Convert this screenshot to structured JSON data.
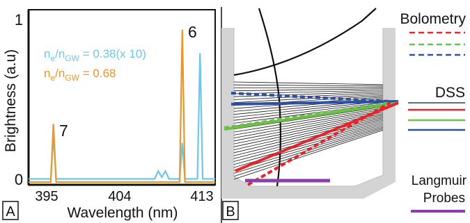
{
  "panel_a": {
    "label": "A",
    "ylabel": "Brightness (a.u)",
    "xlabel": "Wavelength (nm)",
    "xticks": [
      "395",
      "404",
      "413"
    ],
    "yticks": [
      "0",
      "1"
    ],
    "line_labels": [
      "7",
      "6"
    ],
    "legend": {
      "cyan_prefix": "n",
      "cyan_sub1": "e",
      "cyan_slash": "/n",
      "cyan_sub2": "GW",
      "cyan_value": " = 0.38(x 10)",
      "orange_prefix": "n",
      "orange_sub1": "e",
      "orange_slash": "/n",
      "orange_sub2": "GW",
      "orange_value": " = 0.68"
    },
    "colors": {
      "cyan": "#6ec6e8",
      "orange": "#e8952a"
    }
  },
  "panel_b": {
    "label": "B",
    "legend": {
      "bolometry": "Bolometry",
      "dss": "DSS",
      "langmuir_1": "Langmuir",
      "langmuir_2": "Probes"
    },
    "colors": {
      "red": "#e8232a",
      "green": "#6cc04a",
      "blue": "#2e4fa3",
      "purple": "#8b3fa8",
      "wall": "#d4d4d4"
    }
  },
  "chart_data": {
    "type": "line",
    "xlabel": "Wavelength (nm)",
    "ylabel": "Brightness (a.u)",
    "xlim": [
      393,
      414
    ],
    "ylim": [
      0,
      1
    ],
    "series": [
      {
        "name": "n_e/n_GW = 0.38(x 10)",
        "color": "#6ec6e8",
        "x": [
          393,
          395.5,
          395.8,
          396.1,
          404,
          407.2,
          407.6,
          408,
          408.4,
          408.8,
          410,
          410.3,
          410.6,
          412,
          412.3,
          412.6,
          414
        ],
        "y": [
          0.02,
          0.02,
          0.3,
          0.02,
          0.02,
          0.02,
          0.07,
          0.03,
          0.07,
          0.02,
          0.02,
          0.25,
          0.02,
          0.02,
          0.82,
          0.02,
          0.02
        ]
      },
      {
        "name": "n_e/n_GW = 0.68",
        "color": "#e8952a",
        "x": [
          393,
          395.5,
          395.8,
          396.1,
          404,
          410,
          410.3,
          410.6,
          414
        ],
        "y": [
          0,
          0,
          0.37,
          0,
          0,
          0,
          0.97,
          0,
          0
        ]
      }
    ]
  }
}
